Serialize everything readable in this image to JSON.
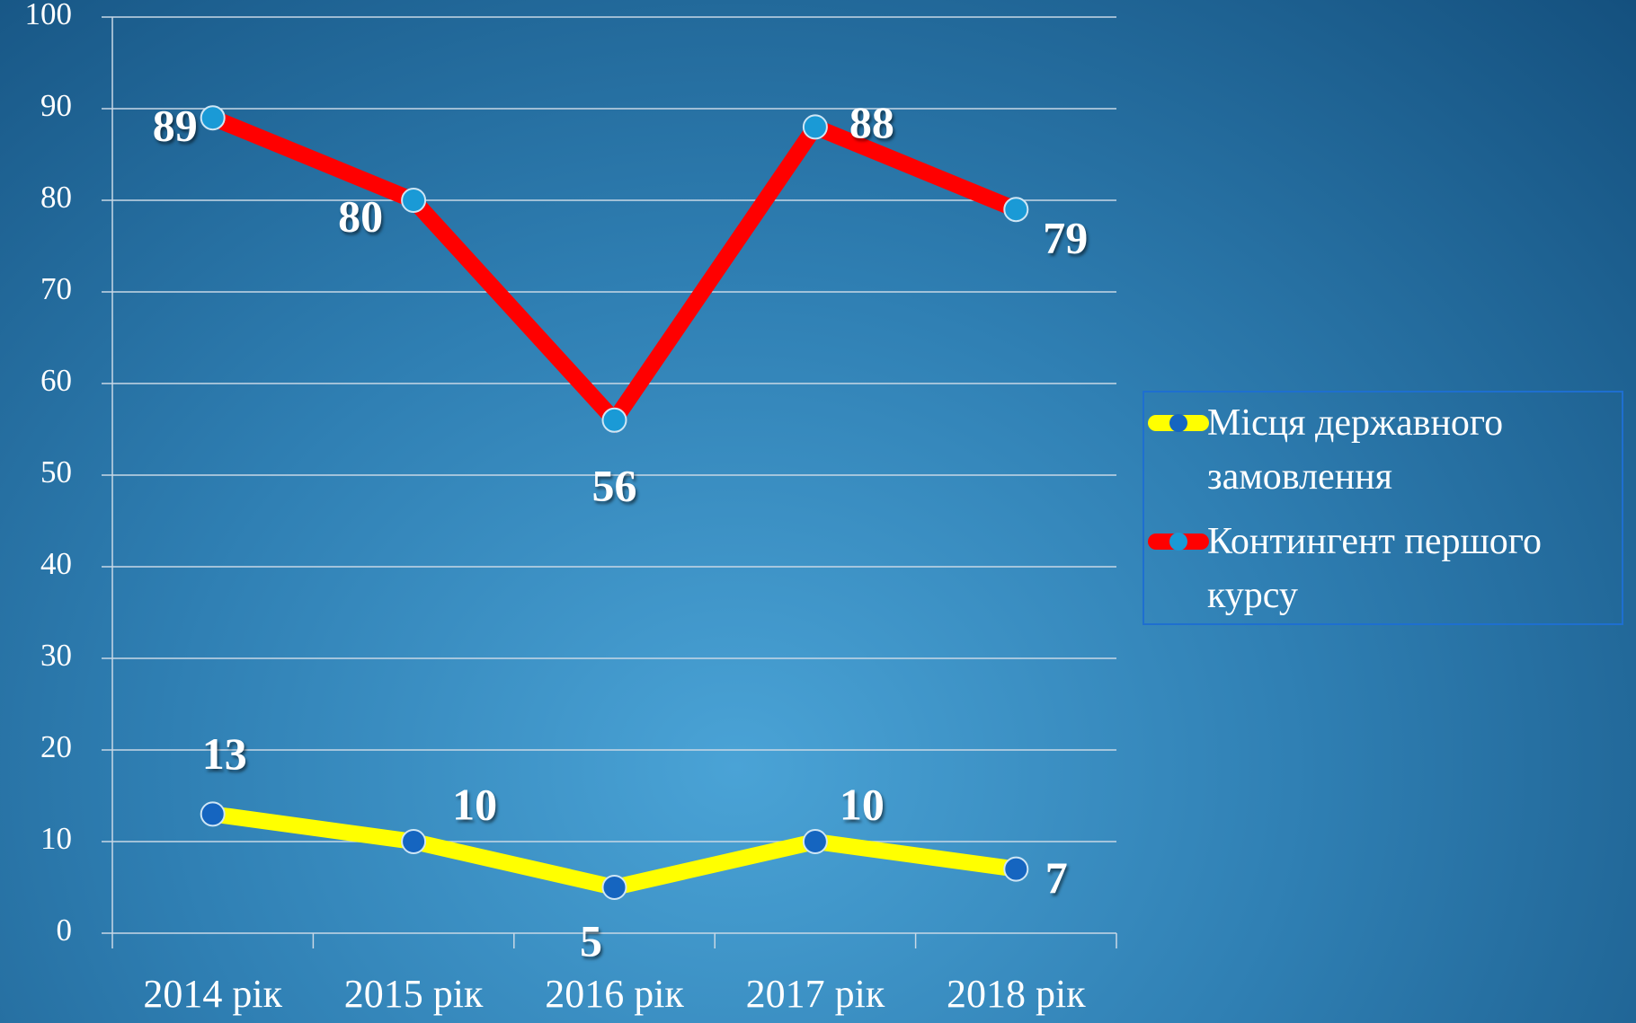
{
  "chart_data": {
    "type": "line",
    "categories": [
      "2014 рік",
      "2015 рік",
      "2016 рік",
      "2017 рік",
      "2018 рік"
    ],
    "series": [
      {
        "name": "Місця державного замовлення",
        "color": "#ffff00",
        "marker_color": "#1565c0",
        "values": [
          13,
          10,
          5,
          10,
          7
        ]
      },
      {
        "name": "Контингент першого курсу",
        "color": "#ff0000",
        "marker_color": "#1a9ad6",
        "values": [
          89,
          80,
          56,
          88,
          79
        ]
      }
    ],
    "ylim": [
      0,
      100
    ],
    "yticks": [
      0,
      10,
      20,
      30,
      40,
      50,
      60,
      70,
      80,
      90,
      100
    ],
    "grid": true,
    "legend": "right"
  }
}
